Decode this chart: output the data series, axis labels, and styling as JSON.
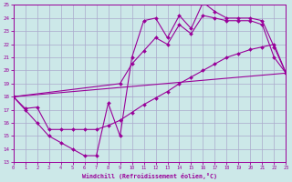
{
  "background_color": "#cce8e8",
  "grid_color": "#aaaacc",
  "line_color": "#990099",
  "xlim": [
    0,
    23
  ],
  "ylim": [
    13,
    25
  ],
  "xlabel": "Windchill (Refroidissement éolien,°C)",
  "yticks": [
    13,
    14,
    15,
    16,
    17,
    18,
    19,
    20,
    21,
    22,
    23,
    24,
    25
  ],
  "xticks": [
    0,
    1,
    2,
    3,
    4,
    5,
    6,
    7,
    8,
    9,
    10,
    11,
    12,
    13,
    14,
    15,
    16,
    17,
    18,
    19,
    20,
    21,
    22,
    23
  ],
  "line1_x": [
    0,
    1,
    2,
    3,
    4,
    5,
    6,
    7,
    8,
    9,
    10,
    11,
    12,
    13,
    14,
    15,
    16,
    17,
    18,
    19,
    20,
    21,
    22,
    23
  ],
  "line1_y": [
    18,
    17,
    16,
    15,
    14.5,
    14,
    13.5,
    13.5,
    17.5,
    15,
    21,
    23.8,
    24,
    22.5,
    24.2,
    23.2,
    25.2,
    24.5,
    24,
    24,
    24,
    23.8,
    21.8,
    19.8
  ],
  "line2_x": [
    0,
    9,
    10,
    11,
    12,
    13,
    14,
    15,
    16,
    17,
    18,
    19,
    20,
    21,
    22,
    23
  ],
  "line2_y": [
    18,
    19.0,
    20.5,
    21.5,
    22.5,
    22.0,
    23.5,
    22.8,
    24.2,
    24.0,
    23.8,
    23.8,
    23.8,
    23.5,
    21.0,
    19.8
  ],
  "line3_x": [
    0,
    23
  ],
  "line3_y": [
    18,
    19.8
  ],
  "line4_x": [
    0,
    1,
    2,
    3,
    4,
    5,
    6,
    7,
    8,
    9,
    10,
    11,
    12,
    13,
    14,
    15,
    16,
    17,
    18,
    19,
    20,
    21,
    22,
    23
  ],
  "line4_y": [
    18,
    17.1,
    17.2,
    15.5,
    15.5,
    15.5,
    15.5,
    15.5,
    15.8,
    16.2,
    16.8,
    17.4,
    17.9,
    18.4,
    19.0,
    19.5,
    20.0,
    20.5,
    21.0,
    21.3,
    21.6,
    21.8,
    22.0,
    19.8
  ]
}
